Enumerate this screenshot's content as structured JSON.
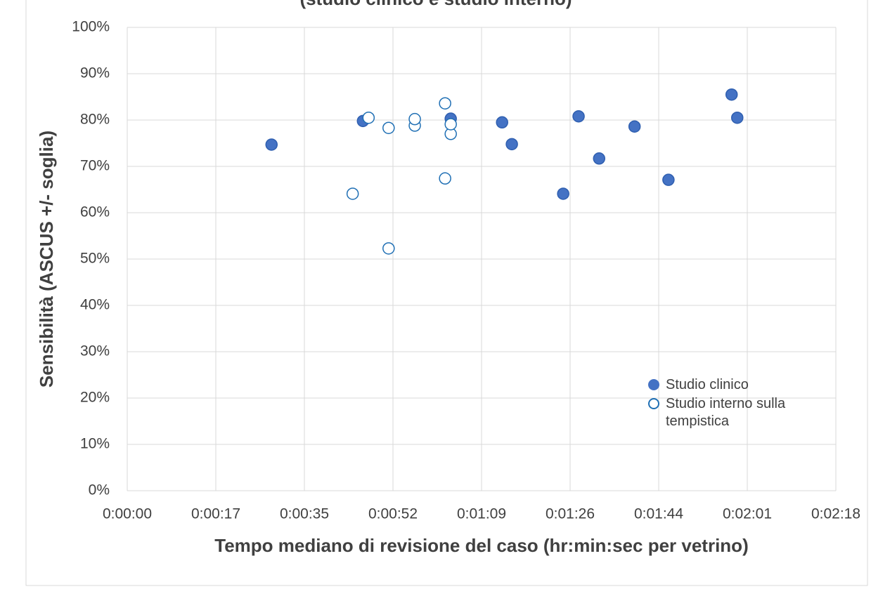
{
  "chart_data": {
    "type": "scatter",
    "title": "(studio clinico e studio interno)",
    "xlabel": "Tempo mediano di revisione del caso (hr:min:sec per vetrino)",
    "ylabel": "Sensibilità (ASCUS +/- soglia)",
    "xlim": [
      0,
      138
    ],
    "ylim": [
      0,
      100
    ],
    "xticks": [
      {
        "value": 0,
        "label": "0:00:00"
      },
      {
        "value": 17.25,
        "label": "0:00:17"
      },
      {
        "value": 34.5,
        "label": "0:00:35"
      },
      {
        "value": 51.75,
        "label": "0:00:52"
      },
      {
        "value": 69,
        "label": "0:01:09"
      },
      {
        "value": 86.25,
        "label": "0:01:26"
      },
      {
        "value": 103.5,
        "label": "0:01:44"
      },
      {
        "value": 120.75,
        "label": "0:02:01"
      },
      {
        "value": 138,
        "label": "0:02:18"
      }
    ],
    "yticks": [
      {
        "value": 0,
        "label": "0%"
      },
      {
        "value": 10,
        "label": "10%"
      },
      {
        "value": 20,
        "label": "20%"
      },
      {
        "value": 30,
        "label": "30%"
      },
      {
        "value": 40,
        "label": "40%"
      },
      {
        "value": 50,
        "label": "50%"
      },
      {
        "value": 60,
        "label": "60%"
      },
      {
        "value": 70,
        "label": "70%"
      },
      {
        "value": 80,
        "label": "80%"
      },
      {
        "value": 90,
        "label": "90%"
      },
      {
        "value": 100,
        "label": "100%"
      }
    ],
    "grid": true,
    "legend": "lower right",
    "series": [
      {
        "name": "Studio clinico",
        "color": "#4472c4",
        "filled": true,
        "x": [
          28.1,
          45.9,
          63.0,
          73.0,
          74.9,
          84.9,
          87.9,
          91.9,
          98.8,
          105.4,
          117.7,
          118.8
        ],
        "values": [
          74.7,
          79.8,
          80.3,
          79.5,
          74.8,
          64.1,
          80.8,
          71.7,
          78.6,
          67.1,
          85.5,
          80.5
        ]
      },
      {
        "name": "Studio interno sulla tempistica",
        "color": "#1f6fb4",
        "filled": false,
        "x": [
          43.9,
          47.0,
          50.9,
          50.9,
          56.0,
          56.0,
          61.9,
          61.9,
          63.0,
          63.0
        ],
        "values": [
          64.1,
          80.5,
          78.3,
          52.3,
          78.8,
          80.2,
          83.6,
          67.4,
          77.0,
          79.1
        ]
      }
    ]
  }
}
